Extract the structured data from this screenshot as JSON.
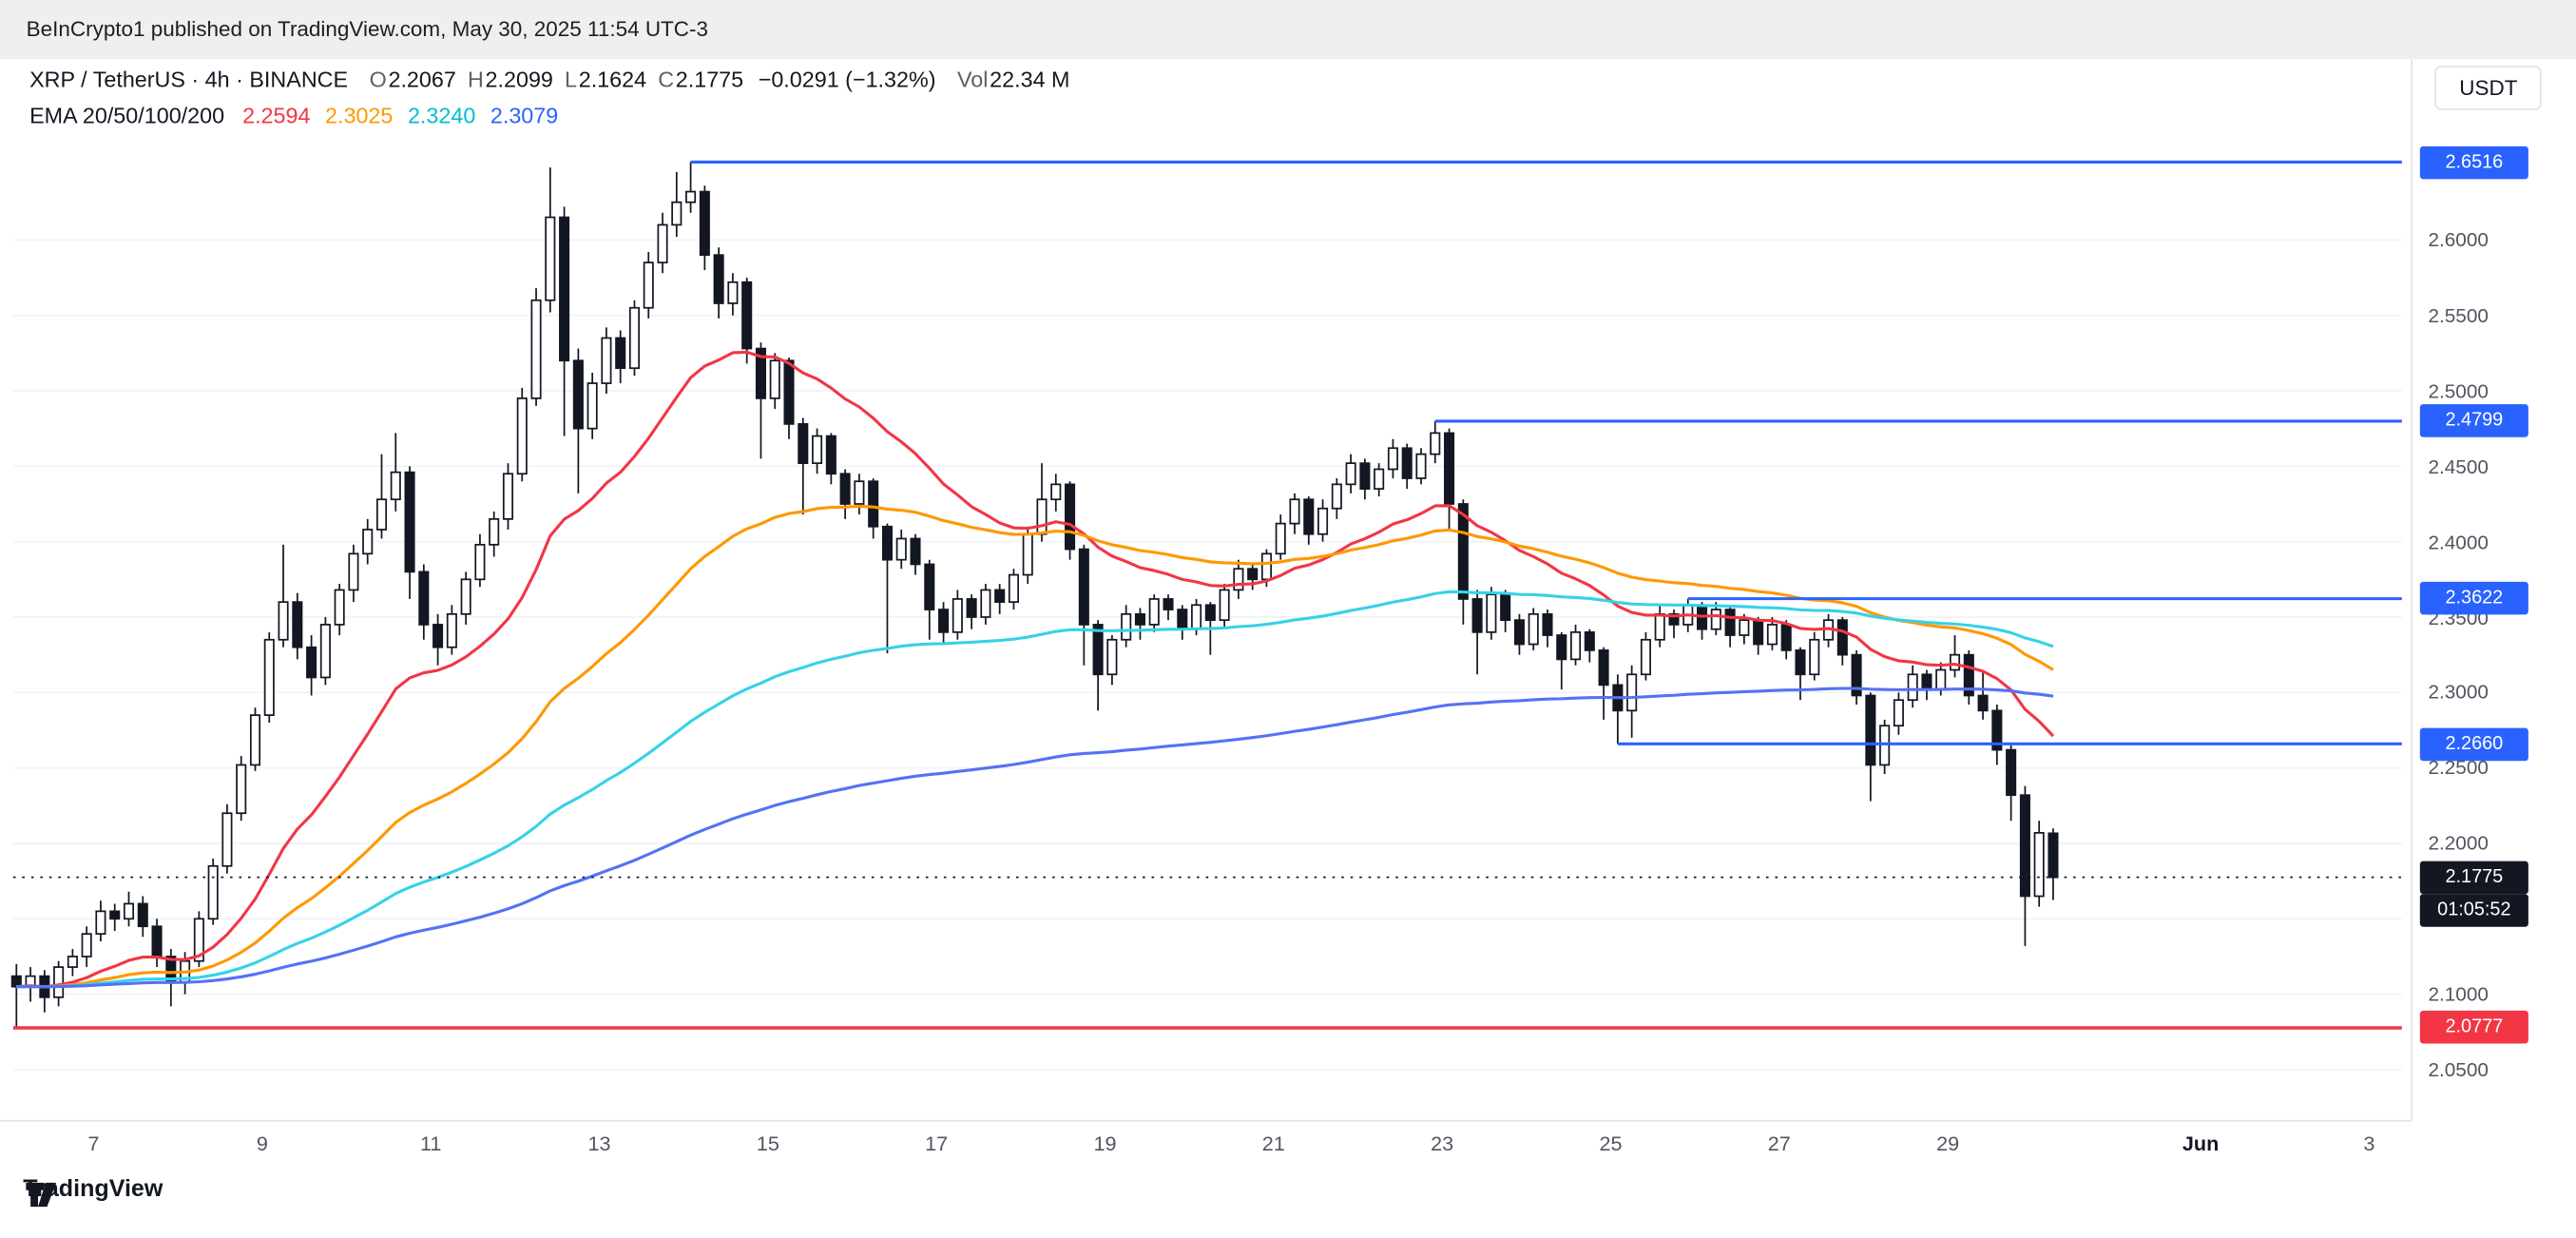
{
  "banner": {
    "text": "BeInCrypto1 published on TradingView.com, May 30, 2025 11:54 UTC-3"
  },
  "header": {
    "symbol": "XRP / TetherUS · 4h · BINANCE",
    "ohlc": [
      {
        "label": "O",
        "value": "2.2067"
      },
      {
        "label": "H",
        "value": "2.2099"
      },
      {
        "label": "L",
        "value": "2.1624"
      },
      {
        "label": "C",
        "value": "2.1775"
      }
    ],
    "change": "−0.0291 (−1.32%)",
    "volume": {
      "label": "Vol",
      "value": "22.34 M"
    },
    "currency": "USDT"
  },
  "indicator": {
    "label": "EMA 20/50/100/200",
    "values": [
      {
        "text": "2.2594",
        "color": "#f23645"
      },
      {
        "text": "2.3025",
        "color": "#ff9800"
      },
      {
        "text": "2.3240",
        "color": "#00bcd4"
      },
      {
        "text": "2.3079",
        "color": "#2962ff"
      }
    ]
  },
  "footer": {
    "brand": "TradingView"
  },
  "chart_data": {
    "type": "candlestick",
    "title": "XRP / TetherUS 4h BINANCE",
    "colors": {
      "up_candle": "#ffffff",
      "down_candle": "#131722",
      "outline": "#131722",
      "grid": "#f0f3f7",
      "frame": "#e0e3eb",
      "level_blue": "#2962ff",
      "level_red": "#f23645",
      "last_badge": "#131722"
    },
    "price_axis": {
      "min": 2.045,
      "max": 2.662,
      "ticks": [
        "2.6000",
        "2.5500",
        "2.5000",
        "2.4500",
        "2.4000",
        "2.3500",
        "2.3000",
        "2.2500",
        "2.2000",
        "2.1500",
        "2.1000",
        "2.0500"
      ]
    },
    "time_axis": {
      "labels": [
        {
          "t": "7",
          "i": 5.5
        },
        {
          "t": "9",
          "i": 17.5
        },
        {
          "t": "11",
          "i": 29.5
        },
        {
          "t": "13",
          "i": 41.5
        },
        {
          "t": "15",
          "i": 53.5
        },
        {
          "t": "17",
          "i": 65.5
        },
        {
          "t": "19",
          "i": 77.5
        },
        {
          "t": "21",
          "i": 89.5
        },
        {
          "t": "23",
          "i": 101.5
        },
        {
          "t": "25",
          "i": 113.5
        },
        {
          "t": "27",
          "i": 125.5
        },
        {
          "t": "29",
          "i": 137.5
        },
        {
          "t": "Jun",
          "i": 155.5,
          "bold": true
        },
        {
          "t": "3",
          "i": 167.5
        }
      ]
    },
    "emas": [
      {
        "period": 20,
        "color": "#f23645"
      },
      {
        "period": 50,
        "color": "#ff9800"
      },
      {
        "period": 100,
        "color": "#35d2e8"
      },
      {
        "period": 200,
        "color": "#5472f5"
      }
    ],
    "levels": [
      {
        "label": "2.6516",
        "price": 2.6516,
        "from_idx": 48,
        "color": "#2962ff"
      },
      {
        "label": "2.4799",
        "price": 2.4799,
        "from_idx": 101,
        "color": "#2962ff"
      },
      {
        "label": "2.3622",
        "price": 2.3622,
        "from_idx": 119,
        "color": "#2962ff"
      },
      {
        "label": "2.2660",
        "price": 2.266,
        "from_idx": 114,
        "color": "#2962ff"
      },
      {
        "label": "2.0777",
        "price": 2.0777,
        "from_idx": 0,
        "color": "#f23645"
      }
    ],
    "last_price": {
      "label": "2.1775",
      "value": 2.1775,
      "countdown": "01:05:52",
      "color": "#131722"
    },
    "candles": [
      [
        2.112,
        2.12,
        2.078,
        2.105
      ],
      [
        2.105,
        2.118,
        2.095,
        2.112
      ],
      [
        2.112,
        2.116,
        2.088,
        2.098
      ],
      [
        2.098,
        2.122,
        2.092,
        2.118
      ],
      [
        2.118,
        2.13,
        2.112,
        2.125
      ],
      [
        2.125,
        2.145,
        2.118,
        2.14
      ],
      [
        2.14,
        2.162,
        2.135,
        2.155
      ],
      [
        2.155,
        2.16,
        2.142,
        2.15
      ],
      [
        2.15,
        2.168,
        2.145,
        2.16
      ],
      [
        2.16,
        2.165,
        2.138,
        2.145
      ],
      [
        2.145,
        2.15,
        2.118,
        2.125
      ],
      [
        2.125,
        2.13,
        2.092,
        2.108
      ],
      [
        2.108,
        2.128,
        2.1,
        2.122
      ],
      [
        2.122,
        2.155,
        2.118,
        2.15
      ],
      [
        2.15,
        2.19,
        2.146,
        2.185
      ],
      [
        2.185,
        2.226,
        2.18,
        2.22
      ],
      [
        2.22,
        2.258,
        2.215,
        2.252
      ],
      [
        2.252,
        2.29,
        2.248,
        2.285
      ],
      [
        2.285,
        2.34,
        2.28,
        2.335
      ],
      [
        2.335,
        2.398,
        2.33,
        2.36
      ],
      [
        2.36,
        2.366,
        2.322,
        2.33
      ],
      [
        2.33,
        2.338,
        2.298,
        2.31
      ],
      [
        2.31,
        2.35,
        2.305,
        2.345
      ],
      [
        2.345,
        2.372,
        2.338,
        2.368
      ],
      [
        2.368,
        2.398,
        2.36,
        2.392
      ],
      [
        2.392,
        2.415,
        2.385,
        2.408
      ],
      [
        2.408,
        2.458,
        2.402,
        2.428
      ],
      [
        2.428,
        2.472,
        2.42,
        2.446
      ],
      [
        2.446,
        2.45,
        2.362,
        2.38
      ],
      [
        2.38,
        2.385,
        2.335,
        2.345
      ],
      [
        2.345,
        2.352,
        2.318,
        2.33
      ],
      [
        2.33,
        2.358,
        2.325,
        2.352
      ],
      [
        2.352,
        2.38,
        2.345,
        2.375
      ],
      [
        2.375,
        2.405,
        2.37,
        2.398
      ],
      [
        2.398,
        2.42,
        2.39,
        2.415
      ],
      [
        2.415,
        2.452,
        2.408,
        2.445
      ],
      [
        2.445,
        2.502,
        2.44,
        2.495
      ],
      [
        2.495,
        2.568,
        2.49,
        2.56
      ],
      [
        2.56,
        2.648,
        2.552,
        2.615
      ],
      [
        2.615,
        2.622,
        2.47,
        2.52
      ],
      [
        2.52,
        2.528,
        2.432,
        2.475
      ],
      [
        2.475,
        2.512,
        2.468,
        2.505
      ],
      [
        2.505,
        2.542,
        2.498,
        2.535
      ],
      [
        2.535,
        2.54,
        2.505,
        2.515
      ],
      [
        2.515,
        2.56,
        2.51,
        2.555
      ],
      [
        2.555,
        2.592,
        2.548,
        2.585
      ],
      [
        2.585,
        2.618,
        2.578,
        2.61
      ],
      [
        2.61,
        2.645,
        2.602,
        2.625
      ],
      [
        2.625,
        2.6516,
        2.618,
        2.632
      ],
      [
        2.632,
        2.636,
        2.58,
        2.59
      ],
      [
        2.59,
        2.595,
        2.548,
        2.558
      ],
      [
        2.558,
        2.578,
        2.55,
        2.572
      ],
      [
        2.572,
        2.575,
        2.518,
        2.528
      ],
      [
        2.528,
        2.532,
        2.455,
        2.495
      ],
      [
        2.495,
        2.525,
        2.488,
        2.52
      ],
      [
        2.52,
        2.522,
        2.468,
        2.478
      ],
      [
        2.478,
        2.482,
        2.418,
        2.452
      ],
      [
        2.452,
        2.475,
        2.445,
        2.47
      ],
      [
        2.47,
        2.472,
        2.438,
        2.445
      ],
      [
        2.445,
        2.448,
        2.415,
        2.425
      ],
      [
        2.425,
        2.445,
        2.418,
        2.44
      ],
      [
        2.44,
        2.442,
        2.402,
        2.41
      ],
      [
        2.41,
        2.412,
        2.326,
        2.388
      ],
      [
        2.388,
        2.408,
        2.382,
        2.402
      ],
      [
        2.402,
        2.405,
        2.378,
        2.385
      ],
      [
        2.385,
        2.388,
        2.335,
        2.355
      ],
      [
        2.355,
        2.36,
        2.332,
        2.34
      ],
      [
        2.34,
        2.368,
        2.335,
        2.362
      ],
      [
        2.362,
        2.365,
        2.342,
        2.35
      ],
      [
        2.35,
        2.372,
        2.345,
        2.368
      ],
      [
        2.368,
        2.372,
        2.352,
        2.36
      ],
      [
        2.36,
        2.382,
        2.355,
        2.378
      ],
      [
        2.378,
        2.41,
        2.372,
        2.405
      ],
      [
        2.405,
        2.452,
        2.4,
        2.428
      ],
      [
        2.428,
        2.445,
        2.42,
        2.438
      ],
      [
        2.438,
        2.44,
        2.388,
        2.395
      ],
      [
        2.395,
        2.398,
        2.318,
        2.345
      ],
      [
        2.345,
        2.348,
        2.288,
        2.312
      ],
      [
        2.312,
        2.338,
        2.305,
        2.335
      ],
      [
        2.335,
        2.358,
        2.33,
        2.352
      ],
      [
        2.352,
        2.356,
        2.335,
        2.345
      ],
      [
        2.345,
        2.365,
        2.34,
        2.362
      ],
      [
        2.362,
        2.365,
        2.348,
        2.355
      ],
      [
        2.355,
        2.358,
        2.335,
        2.342
      ],
      [
        2.342,
        2.362,
        2.338,
        2.358
      ],
      [
        2.358,
        2.36,
        2.325,
        2.348
      ],
      [
        2.348,
        2.372,
        2.342,
        2.368
      ],
      [
        2.368,
        2.388,
        2.362,
        2.382
      ],
      [
        2.382,
        2.385,
        2.368,
        2.375
      ],
      [
        2.375,
        2.395,
        2.37,
        2.392
      ],
      [
        2.392,
        2.418,
        2.388,
        2.412
      ],
      [
        2.412,
        2.432,
        2.405,
        2.428
      ],
      [
        2.428,
        2.43,
        2.398,
        2.405
      ],
      [
        2.405,
        2.428,
        2.4,
        2.422
      ],
      [
        2.422,
        2.442,
        2.415,
        2.438
      ],
      [
        2.438,
        2.458,
        2.432,
        2.452
      ],
      [
        2.452,
        2.455,
        2.428,
        2.435
      ],
      [
        2.435,
        2.452,
        2.43,
        2.448
      ],
      [
        2.448,
        2.468,
        2.442,
        2.462
      ],
      [
        2.462,
        2.465,
        2.435,
        2.442
      ],
      [
        2.442,
        2.462,
        2.438,
        2.458
      ],
      [
        2.458,
        2.4799,
        2.452,
        2.472
      ],
      [
        2.472,
        2.475,
        2.408,
        2.425
      ],
      [
        2.425,
        2.428,
        2.345,
        2.362
      ],
      [
        2.362,
        2.368,
        2.312,
        2.34
      ],
      [
        2.34,
        2.37,
        2.335,
        2.365
      ],
      [
        2.365,
        2.368,
        2.34,
        2.348
      ],
      [
        2.348,
        2.352,
        2.325,
        2.332
      ],
      [
        2.332,
        2.356,
        2.328,
        2.352
      ],
      [
        2.352,
        2.355,
        2.33,
        2.338
      ],
      [
        2.338,
        2.34,
        2.302,
        2.322
      ],
      [
        2.322,
        2.345,
        2.318,
        2.34
      ],
      [
        2.34,
        2.342,
        2.32,
        2.328
      ],
      [
        2.328,
        2.33,
        2.282,
        2.305
      ],
      [
        2.305,
        2.312,
        2.266,
        2.288
      ],
      [
        2.288,
        2.318,
        2.27,
        2.312
      ],
      [
        2.312,
        2.34,
        2.308,
        2.335
      ],
      [
        2.335,
        2.358,
        2.33,
        2.352
      ],
      [
        2.352,
        2.355,
        2.336,
        2.345
      ],
      [
        2.345,
        2.3622,
        2.34,
        2.358
      ],
      [
        2.358,
        2.36,
        2.335,
        2.342
      ],
      [
        2.342,
        2.36,
        2.338,
        2.355
      ],
      [
        2.355,
        2.358,
        2.33,
        2.338
      ],
      [
        2.338,
        2.352,
        2.332,
        2.348
      ],
      [
        2.348,
        2.35,
        2.325,
        2.332
      ],
      [
        2.332,
        2.35,
        2.328,
        2.345
      ],
      [
        2.345,
        2.348,
        2.322,
        2.328
      ],
      [
        2.328,
        2.33,
        2.295,
        2.312
      ],
      [
        2.312,
        2.34,
        2.308,
        2.335
      ],
      [
        2.335,
        2.352,
        2.33,
        2.348
      ],
      [
        2.348,
        2.35,
        2.318,
        2.325
      ],
      [
        2.325,
        2.328,
        2.292,
        2.298
      ],
      [
        2.298,
        2.3,
        2.228,
        2.252
      ],
      [
        2.252,
        2.282,
        2.246,
        2.278
      ],
      [
        2.278,
        2.3,
        2.272,
        2.295
      ],
      [
        2.295,
        2.318,
        2.29,
        2.312
      ],
      [
        2.312,
        2.315,
        2.295,
        2.302
      ],
      [
        2.302,
        2.32,
        2.298,
        2.315
      ],
      [
        2.315,
        2.338,
        2.31,
        2.325
      ],
      [
        2.325,
        2.328,
        2.292,
        2.298
      ],
      [
        2.298,
        2.315,
        2.282,
        2.288
      ],
      [
        2.288,
        2.292,
        2.252,
        2.262
      ],
      [
        2.262,
        2.265,
        2.215,
        2.232
      ],
      [
        2.232,
        2.238,
        2.132,
        2.165
      ],
      [
        2.165,
        2.215,
        2.158,
        2.207
      ],
      [
        2.2067,
        2.2099,
        2.1624,
        2.1775
      ]
    ]
  }
}
